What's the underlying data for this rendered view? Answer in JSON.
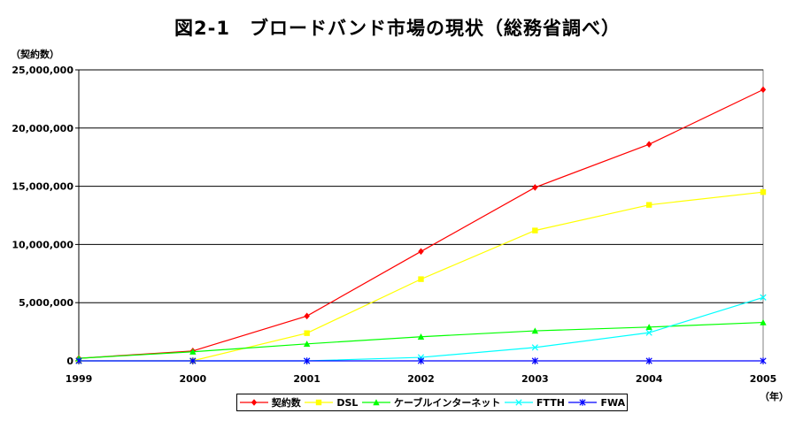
{
  "chart_data": {
    "type": "line",
    "title": "図2-1　ブロードバンド市場の現状（総務省調べ）",
    "ylabel": "（契約数）",
    "xlabel": "（年）",
    "categories": [
      "1999",
      "2000",
      "2001",
      "2002",
      "2003",
      "2004",
      "2005"
    ],
    "ylim": [
      0,
      25000000
    ],
    "yticks": [
      0,
      5000000,
      10000000,
      15000000,
      20000000,
      25000000
    ],
    "ytick_labels": [
      "0",
      "5,000,000",
      "10,000,000",
      "15,000,000",
      "20,000,000",
      "25,000,000"
    ],
    "grid": true,
    "legend_position": "bottom",
    "series": [
      {
        "name": "契約数",
        "color": "#ff0000",
        "marker": "diamond",
        "values": [
          220000,
          850000,
          3850000,
          9400000,
          14900000,
          18600000,
          23300000
        ]
      },
      {
        "name": "DSL",
        "color": "#ffff00",
        "marker": "square",
        "values": [
          0,
          10000,
          2380000,
          7020000,
          11200000,
          13400000,
          14500000
        ]
      },
      {
        "name": "ケーブルインターネット",
        "color": "#00ff00",
        "marker": "triangle",
        "values": [
          220000,
          780000,
          1460000,
          2070000,
          2580000,
          2900000,
          3300000
        ]
      },
      {
        "name": "FTTH",
        "color": "#00ffff",
        "marker": "x",
        "values": [
          0,
          0,
          0,
          300000,
          1150000,
          2420000,
          5450000
        ]
      },
      {
        "name": "FWA",
        "color": "#0000ff",
        "marker": "star",
        "values": [
          0,
          0,
          0,
          0,
          0,
          0,
          0
        ]
      }
    ]
  }
}
